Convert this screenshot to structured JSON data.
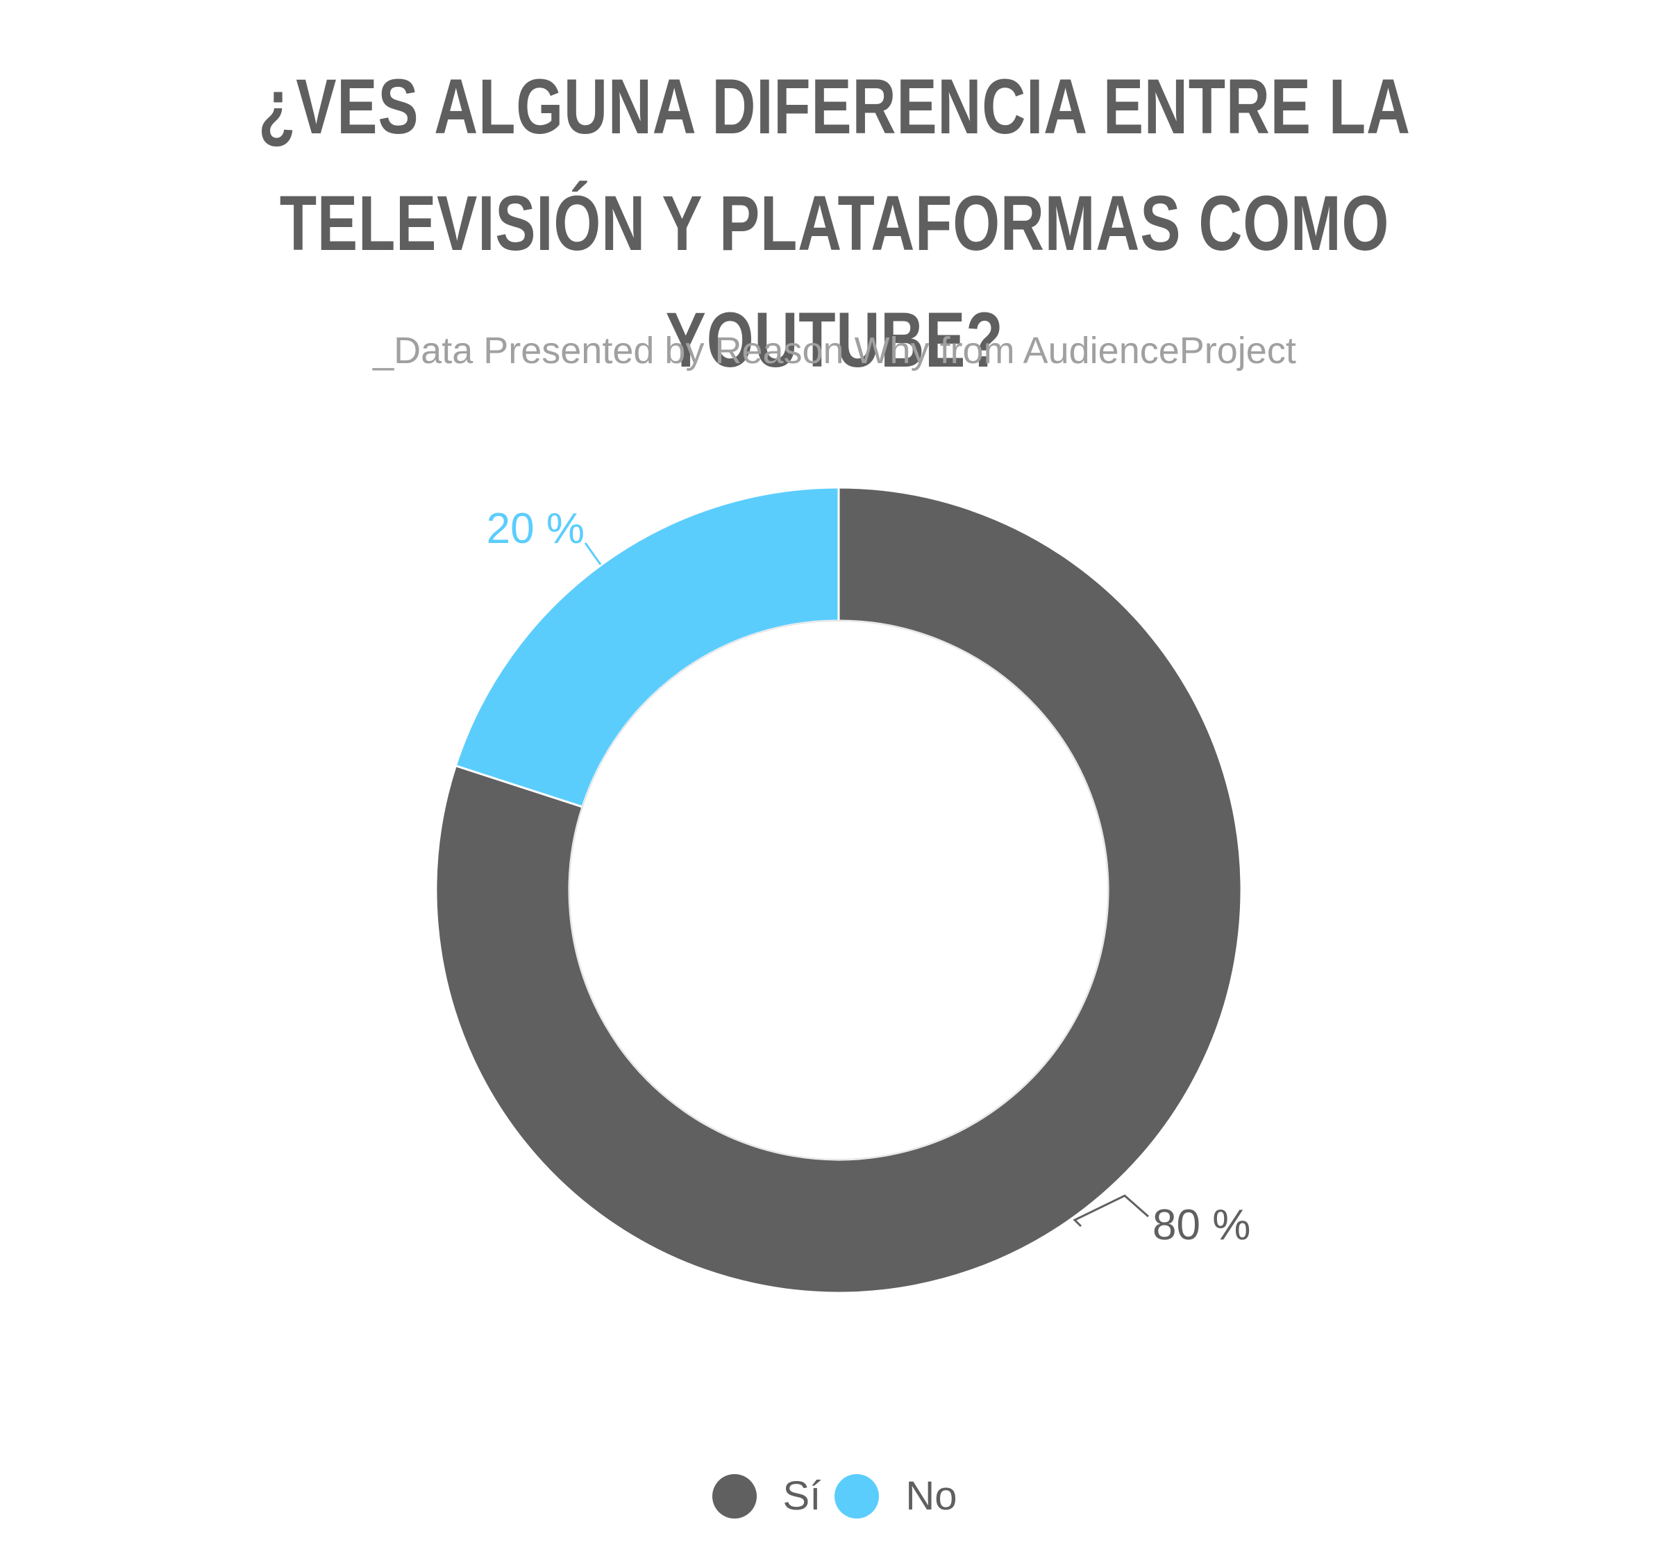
{
  "chart_data": {
    "type": "pie",
    "variant": "donut",
    "title": "¿VES ALGUNA DIFERENCIA ENTRE LA TELEVISIÓN Y PLATAFORMAS COMO YOUTUBE?",
    "subtitle": "_Data Presented by Reason Why from AudienceProject",
    "categories": [
      "Sí",
      "No"
    ],
    "values": [
      80,
      20
    ],
    "labels": [
      "80 %",
      "20 %"
    ],
    "colors": [
      "#606060",
      "#5bcdfd"
    ],
    "legend_position": "bottom-center"
  }
}
